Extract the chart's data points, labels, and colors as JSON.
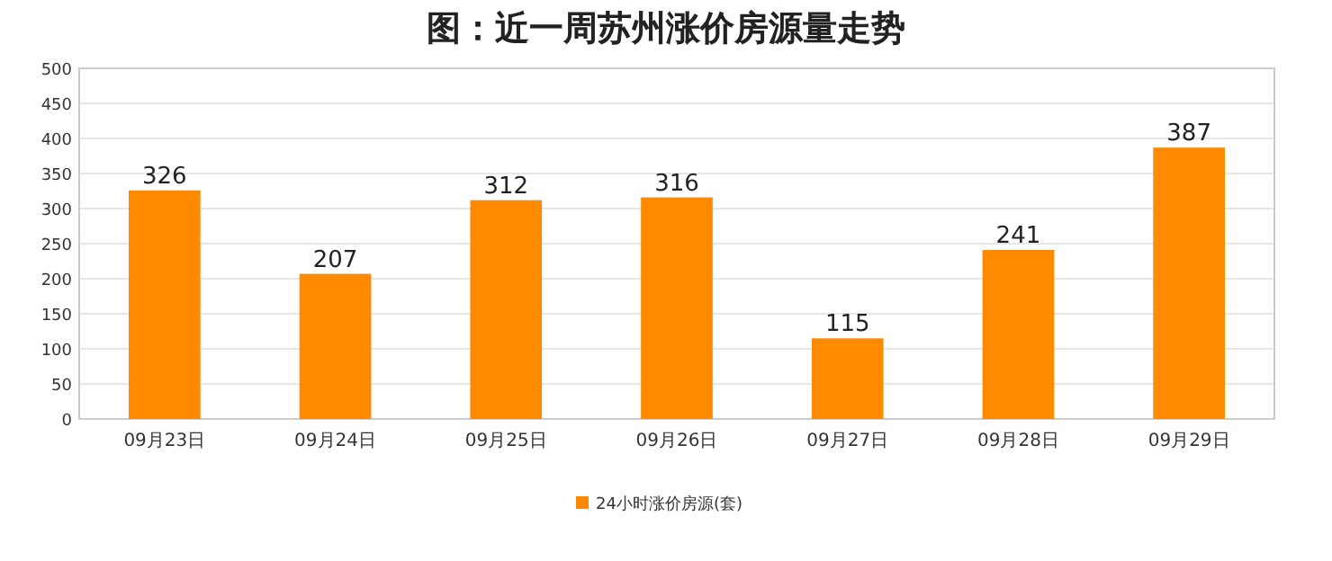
{
  "chart_data": {
    "type": "bar",
    "title": "图：近一周苏州涨价房源量走势",
    "categories": [
      "09月23日",
      "09月24日",
      "09月25日",
      "09月26日",
      "09月27日",
      "09月28日",
      "09月29日"
    ],
    "series": [
      {
        "name": "24小时涨价房源(套)",
        "color": "#ff8a00",
        "values": [
          326,
          207,
          312,
          316,
          115,
          241,
          387
        ]
      }
    ],
    "ylim": [
      0,
      500
    ],
    "yticks": [
      0,
      50,
      100,
      150,
      200,
      250,
      300,
      350,
      400,
      450,
      500
    ],
    "grid": "y",
    "legend": "bottom",
    "data_labels": true
  }
}
